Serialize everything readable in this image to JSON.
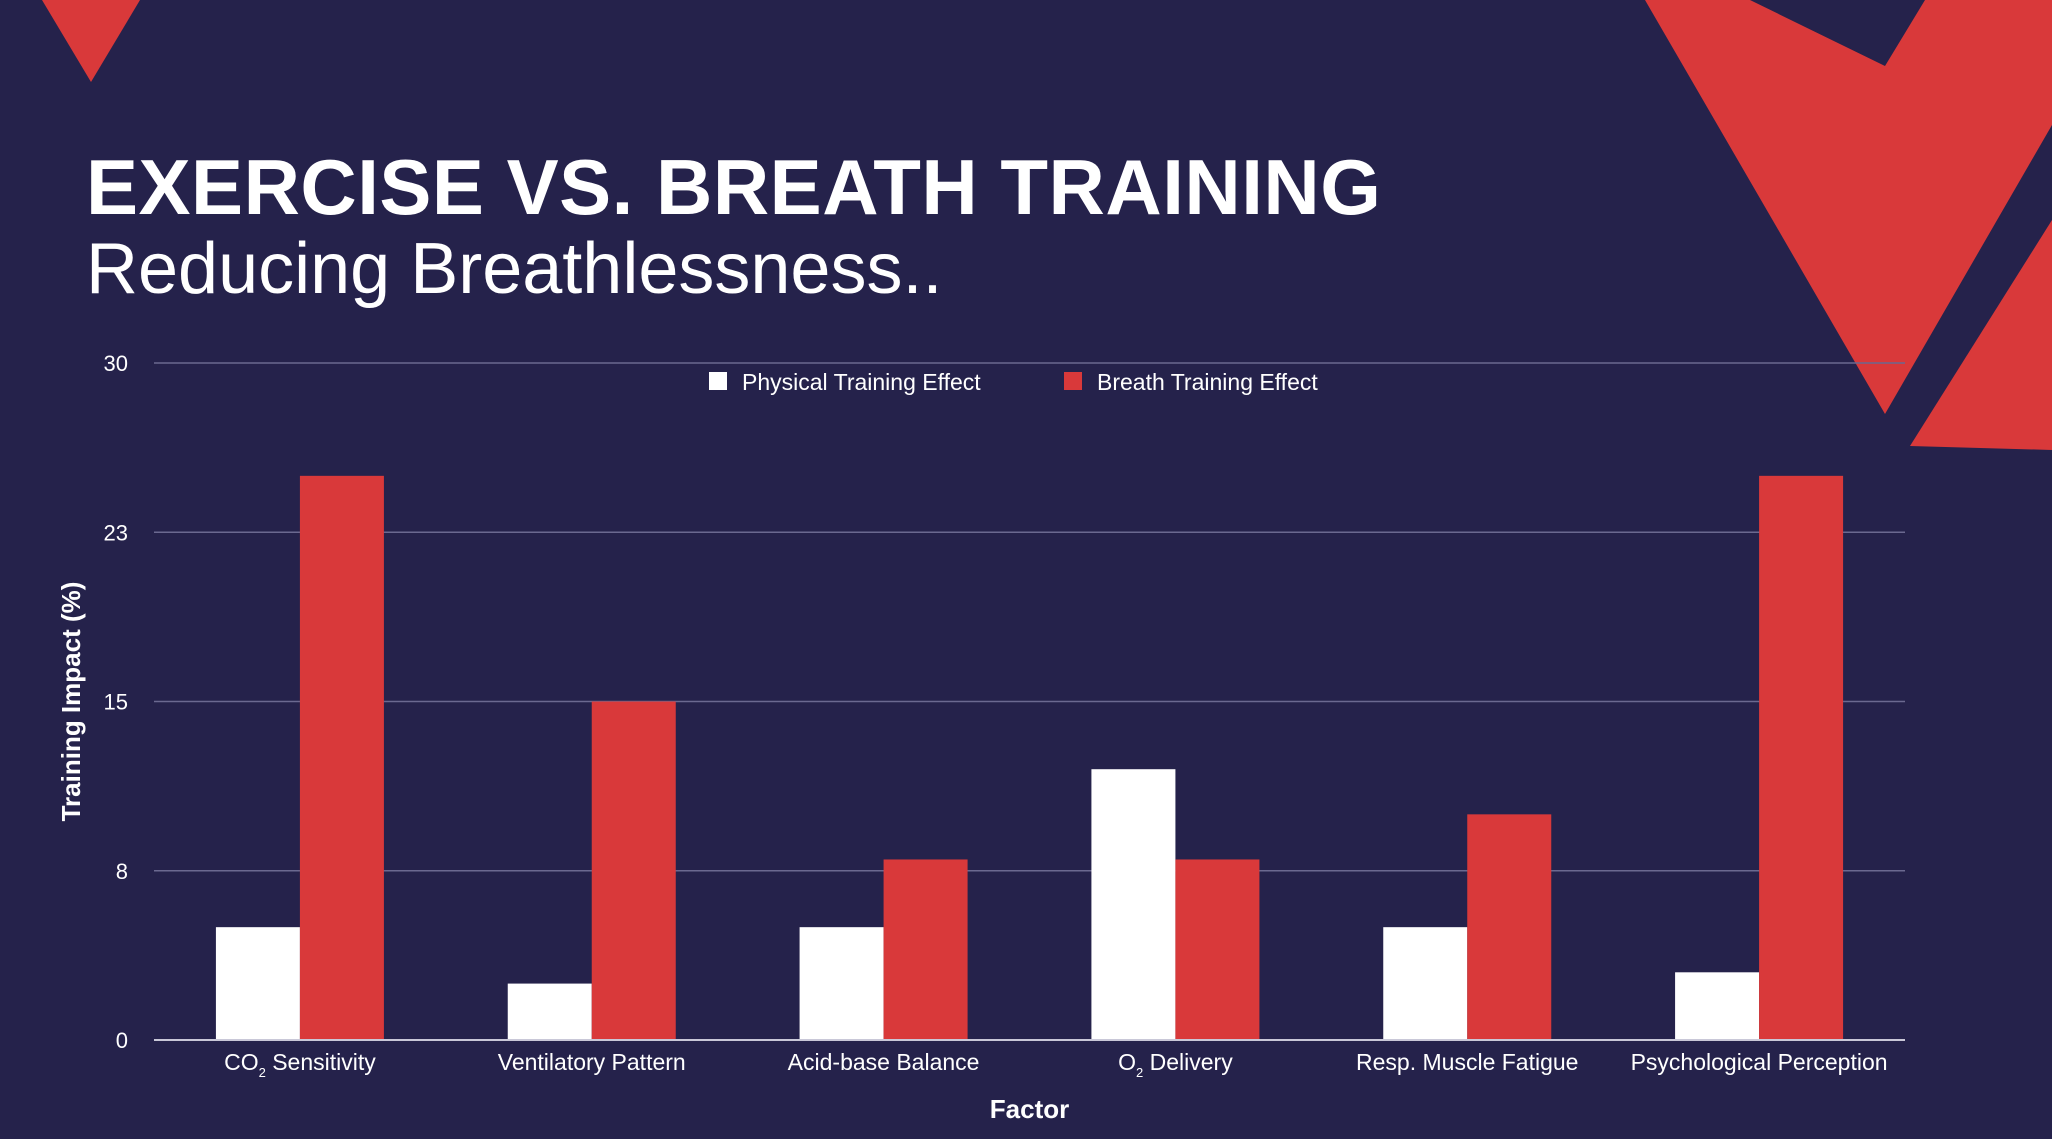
{
  "slide": {
    "title": "EXERCISE VS. BREATH TRAINING",
    "subtitle": "Reducing Breathlessness.."
  },
  "colors": {
    "background": "#25224b",
    "accent": "#d9393a",
    "physical": "#ffffff",
    "breath": "#d9393a",
    "grid": "#6b6990"
  },
  "chart_data": {
    "type": "bar",
    "xlabel": "Factor",
    "ylabel": "Training Impact (%)",
    "ylim": [
      0,
      30
    ],
    "yticks": [
      "0",
      "8",
      "15",
      "23",
      "30"
    ],
    "categories": [
      {
        "main": "CO",
        "sub": "2",
        "rest": " Sensitivity"
      },
      {
        "main": "Ventilatory Pattern",
        "sub": "",
        "rest": ""
      },
      {
        "main": "Acid-base Balance",
        "sub": "",
        "rest": ""
      },
      {
        "main": "O",
        "sub": "2",
        "rest": " Delivery"
      },
      {
        "main": "Resp. Muscle Fatigue",
        "sub": "",
        "rest": ""
      },
      {
        "main": "Psychological Perception",
        "sub": "",
        "rest": ""
      }
    ],
    "series": [
      {
        "name": "Physical Training Effect",
        "values": [
          5,
          2.5,
          5,
          12,
          5,
          3
        ]
      },
      {
        "name": "Breath Training Effect",
        "values": [
          25,
          15,
          8,
          8,
          10,
          25
        ]
      }
    ],
    "legend": "top-center",
    "grid": true
  }
}
